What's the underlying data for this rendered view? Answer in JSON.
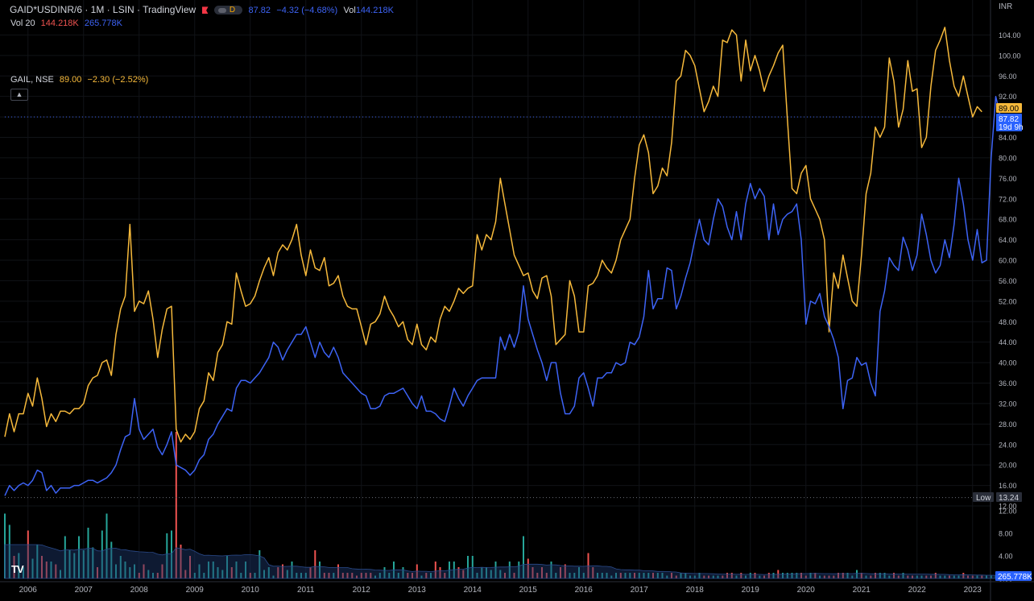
{
  "header": {
    "symbol": "GAID*USDINR/6 · 1M · LSIN · TradingView",
    "mode_badge": "D",
    "last": "87.82",
    "change": "−4.32 (−4.68%)",
    "vol_label": "Vol",
    "vol_value": "144.218K"
  },
  "vol_legend": {
    "label": "Vol 20",
    "value1": "144.218K",
    "value2": "265.778K"
  },
  "compare_legend": {
    "label": "GAIL, NSE",
    "value": "89.00",
    "change": "−2.30 (−2.52%)"
  },
  "collapse_icon": "chevron-up-icon",
  "price_labels": {
    "gail": "89.00",
    "main": "87.82",
    "countdown": "19d 9h",
    "low_label": "Low",
    "low_value": "13.24",
    "vol_value": "265.778K"
  },
  "colors": {
    "main": "#3d63f5",
    "compare": "#f6b93b",
    "up": "#26a69a",
    "down": "#ef5350",
    "bg": "#000000"
  },
  "chart_data": {
    "type": "line",
    "axis_unit": "INR",
    "x_start": "2005-08",
    "x_step": "1 month",
    "x_ticks": [
      "2006",
      "2007",
      "2008",
      "2009",
      "2010",
      "2011",
      "2012",
      "2013",
      "2014",
      "2015",
      "2016",
      "2017",
      "2018",
      "2019",
      "2020",
      "2021",
      "2022",
      "2023"
    ],
    "y_ticks": [
      12,
      16,
      20,
      24,
      28,
      32,
      36,
      40,
      44,
      48,
      52,
      56,
      60,
      64,
      68,
      72,
      76,
      80,
      84,
      88,
      92,
      96,
      100,
      104
    ],
    "ylim": [
      12,
      108
    ],
    "volume_ticks": [
      "0.00",
      "4.00",
      "8.00",
      "12.00"
    ],
    "volume_ylim": [
      0,
      14
    ],
    "series": [
      {
        "name": "GAIL, NSE",
        "values": [
          25.5,
          30,
          26.5,
          30,
          30,
          34,
          31.5,
          37,
          33,
          27.5,
          30,
          28.5,
          30.5,
          30.5,
          30,
          31,
          31,
          32,
          35.5,
          37,
          37.5,
          40,
          40.5,
          37.5,
          45.5,
          50.5,
          53,
          67,
          50,
          52,
          51.5,
          54,
          48.5,
          41,
          46.5,
          50.5,
          51,
          27,
          24.5,
          26,
          25,
          26.5,
          31,
          32.5,
          38,
          36.5,
          42,
          43.5,
          48,
          47.5,
          57.5,
          54,
          51,
          51.5,
          53,
          56,
          58.5,
          60.5,
          57,
          61.5,
          63,
          62,
          64,
          67,
          61,
          57,
          62,
          58.5,
          58,
          60.5,
          55,
          55.5,
          57,
          53,
          51,
          50.5,
          50.5,
          47,
          43.5,
          47.5,
          48,
          49.5,
          53,
          50.5,
          49,
          47,
          48,
          44.5,
          43.5,
          47.5,
          43.5,
          42.5,
          45,
          44,
          48.5,
          51,
          50,
          52,
          54.5,
          53.5,
          54.5,
          55,
          65,
          62,
          65,
          64,
          67.5,
          76,
          71,
          66,
          61,
          59,
          57,
          57.5,
          54,
          52.5,
          56.5,
          57,
          53,
          43.5,
          44.5,
          45.5,
          56,
          53,
          46,
          46,
          55,
          55.5,
          57,
          60,
          58.5,
          57.5,
          60,
          64,
          66,
          68,
          76,
          82.5,
          84.5,
          81,
          73,
          74.5,
          78,
          76.5,
          83,
          95,
          96,
          101,
          100,
          98,
          93.5,
          89,
          91,
          94,
          92,
          103,
          102.5,
          105,
          104,
          95,
          103,
          97,
          100,
          97,
          93,
          96,
          98,
          100.5,
          102,
          87.5,
          74,
          73,
          77,
          78.5,
          72,
          70,
          68,
          64,
          46,
          57.5,
          54.5,
          61,
          56.5,
          52,
          51,
          61,
          73,
          77,
          86,
          84,
          86,
          99.5,
          95,
          86,
          89.5,
          99,
          93,
          93.5,
          82,
          84,
          94,
          101,
          103,
          105.5,
          99,
          94,
          92,
          96,
          92,
          88,
          90,
          89
        ]
      },
      {
        "name": "GAID*USDINR/6",
        "values": [
          14,
          16,
          15,
          16,
          16.5,
          16,
          17,
          19,
          18.5,
          15,
          16,
          14.5,
          15.5,
          15.5,
          15.5,
          16,
          16,
          16.5,
          17,
          17,
          16.5,
          17,
          17.5,
          18.5,
          20,
          23,
          25.5,
          26,
          33,
          27,
          25,
          26,
          27,
          23.5,
          22,
          24,
          26.5,
          20,
          19.5,
          19,
          18,
          19,
          21,
          22,
          25,
          26,
          28,
          29.5,
          31,
          30.5,
          35,
          36.5,
          36.5,
          36,
          37,
          38,
          39.5,
          41,
          44,
          43,
          40.5,
          42.5,
          44,
          45.5,
          45.5,
          47,
          44,
          41,
          44,
          42,
          41,
          43,
          41,
          38,
          37,
          36,
          35,
          34,
          33.5,
          31,
          31,
          31.5,
          33.5,
          34,
          34,
          34.5,
          35,
          33.5,
          32,
          31,
          33.5,
          30.5,
          30.5,
          30,
          29,
          28.5,
          31.5,
          35,
          33,
          31.5,
          33.5,
          35,
          36.5,
          37,
          37,
          37,
          37,
          45,
          42.5,
          45.5,
          43,
          46,
          55,
          48.5,
          45.5,
          42.5,
          40,
          36.5,
          40,
          40,
          34,
          30,
          30,
          31.5,
          37,
          38,
          35,
          31.5,
          37,
          37,
          38,
          38,
          40,
          39.5,
          40,
          44,
          43.5,
          45,
          49,
          58,
          50.5,
          52.5,
          52.5,
          58.5,
          58,
          50.5,
          53,
          56.5,
          59.5,
          64,
          68,
          64,
          63,
          68,
          72,
          70.5,
          66.5,
          64,
          69.5,
          64,
          71,
          75,
          72,
          74,
          72.5,
          64,
          71,
          65,
          68,
          69,
          69.5,
          71,
          64,
          47.5,
          52,
          51.5,
          53.5,
          49,
          47,
          44.5,
          41,
          31,
          36.5,
          37,
          41,
          39.5,
          40,
          36,
          33.5,
          50,
          54,
          60.5,
          59,
          58,
          64.5,
          62,
          58,
          61,
          69,
          65,
          60,
          57.5,
          59,
          64,
          60.5,
          67,
          76,
          71,
          64,
          60,
          66,
          59.5,
          60,
          80,
          92,
          88
        ]
      }
    ],
    "volume": {
      "series_name": "Vol 20",
      "values": [
        11.5,
        9.5,
        4,
        4.5,
        2,
        8.5,
        3.5,
        6,
        4,
        3,
        3,
        2.5,
        1.5,
        7.5,
        5,
        4.5,
        7.5,
        5,
        9,
        5.5,
        2,
        8.5,
        11.5,
        6.5,
        2.5,
        4,
        3,
        2,
        2.5,
        1,
        2.5,
        1.5,
        1,
        1,
        2.5,
        8,
        8.5,
        26,
        6,
        1.5,
        4,
        1,
        2.5,
        1,
        3,
        3,
        2,
        1.5,
        4,
        2,
        3,
        1,
        3,
        1,
        1,
        5,
        1.5,
        2,
        0.5,
        2,
        2.5,
        1.5,
        3,
        1,
        1,
        1,
        2,
        5,
        3,
        1,
        1,
        1,
        2.5,
        1,
        1,
        1,
        0.5,
        1,
        1,
        1,
        0.5,
        1,
        2,
        1,
        3,
        1,
        2,
        1,
        1,
        2.5,
        0.5,
        1,
        1,
        3,
        2,
        1,
        3,
        3,
        2,
        1.5,
        4,
        4,
        1,
        2,
        2,
        1.5,
        3,
        1.5,
        1,
        3,
        1,
        3,
        7.5,
        3.5,
        2,
        1,
        2,
        1,
        3,
        1,
        2,
        2.5,
        1,
        1,
        2,
        1,
        4.5,
        2,
        1,
        1,
        1,
        0.5,
        1,
        1,
        1,
        1,
        1,
        1,
        1,
        1,
        1,
        1,
        1,
        0.5,
        1,
        0.5,
        1,
        1,
        0.5,
        0.5,
        1,
        0.5,
        0.5,
        0.5,
        0.5,
        0.5,
        1,
        1,
        0.5,
        1,
        0.5,
        1,
        1,
        0.5,
        0.5,
        1,
        1,
        1.5,
        1,
        1,
        1,
        1,
        1,
        0.5,
        1,
        1,
        0.5,
        0.5,
        0.5,
        0.5,
        1,
        1,
        1,
        0.5,
        1.5,
        1,
        0.5,
        0.5,
        1,
        1,
        1,
        0.5,
        1,
        0.5,
        1,
        0.5,
        0.5,
        0.5,
        0.5,
        0.5,
        0.5,
        1,
        0.5,
        0.5,
        0.5,
        0.5,
        0.5,
        1,
        0.5,
        0.5,
        0.5,
        0.5,
        0.5,
        0.5,
        0.5,
        0.5,
        0.5,
        0.5,
        0.5,
        0.5
      ]
    }
  }
}
